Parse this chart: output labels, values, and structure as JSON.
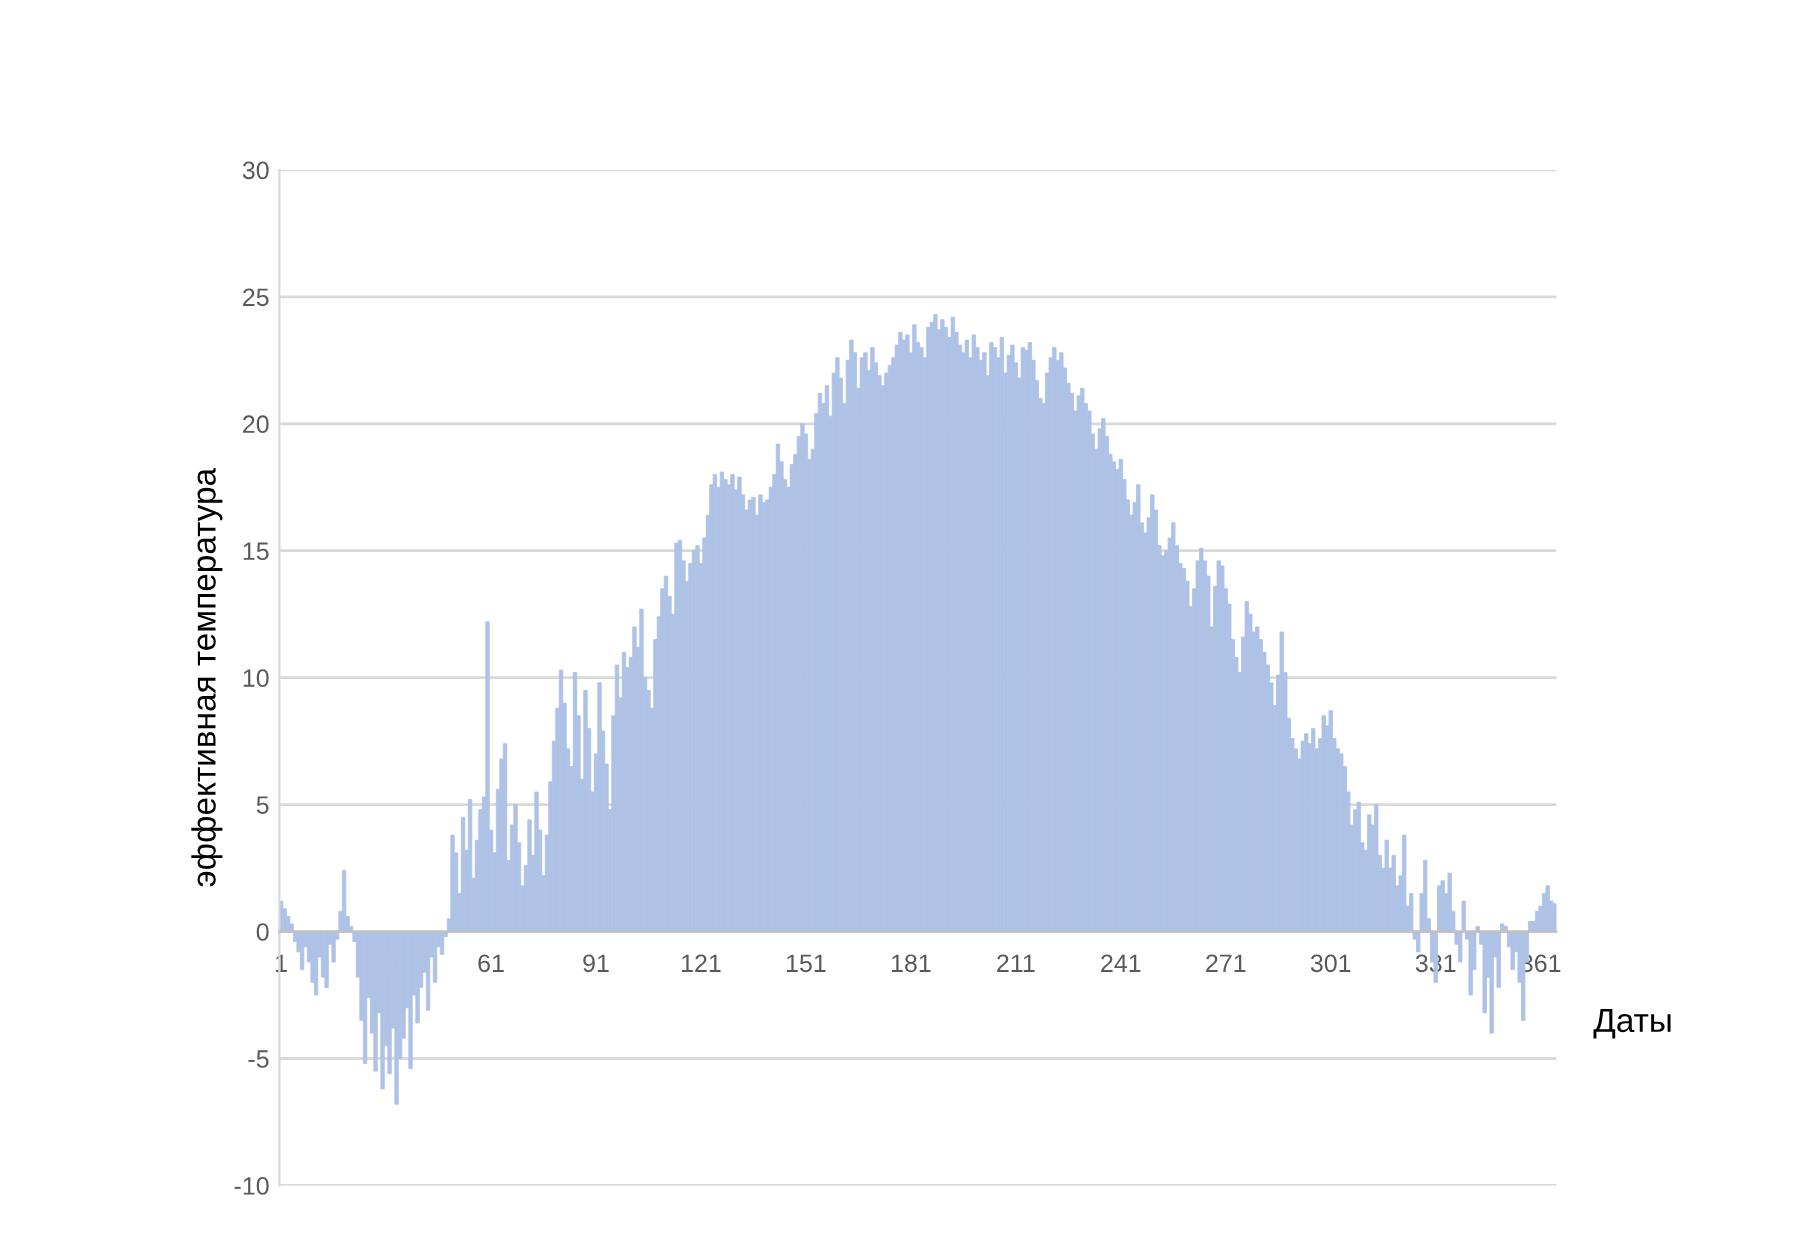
{
  "chart_data": {
    "type": "bar",
    "xlabel": "Даты",
    "ylabel": "эффективная температура",
    "x": [
      1,
      2,
      3,
      4,
      5,
      6,
      7,
      8,
      9,
      10,
      11,
      12,
      13,
      14,
      15,
      16,
      17,
      18,
      19,
      20,
      21,
      22,
      23,
      24,
      25,
      26,
      27,
      28,
      29,
      30,
      31,
      32,
      33,
      34,
      35,
      36,
      37,
      38,
      39,
      40,
      41,
      42,
      43,
      44,
      45,
      46,
      47,
      48,
      49,
      50,
      51,
      52,
      53,
      54,
      55,
      56,
      57,
      58,
      59,
      60,
      61,
      62,
      63,
      64,
      65,
      66,
      67,
      68,
      69,
      70,
      71,
      72,
      73,
      74,
      75,
      76,
      77,
      78,
      79,
      80,
      81,
      82,
      83,
      84,
      85,
      86,
      87,
      88,
      89,
      90,
      91,
      92,
      93,
      94,
      95,
      96,
      97,
      98,
      99,
      100,
      101,
      102,
      103,
      104,
      105,
      106,
      107,
      108,
      109,
      110,
      111,
      112,
      113,
      114,
      115,
      116,
      117,
      118,
      119,
      120,
      121,
      122,
      123,
      124,
      125,
      126,
      127,
      128,
      129,
      130,
      131,
      132,
      133,
      134,
      135,
      136,
      137,
      138,
      139,
      140,
      141,
      142,
      143,
      144,
      145,
      146,
      147,
      148,
      149,
      150,
      151,
      152,
      153,
      154,
      155,
      156,
      157,
      158,
      159,
      160,
      161,
      162,
      163,
      164,
      165,
      166,
      167,
      168,
      169,
      170,
      171,
      172,
      173,
      174,
      175,
      176,
      177,
      178,
      179,
      180,
      181,
      182,
      183,
      184,
      185,
      186,
      187,
      188,
      189,
      190,
      191,
      192,
      193,
      194,
      195,
      196,
      197,
      198,
      199,
      200,
      201,
      202,
      203,
      204,
      205,
      206,
      207,
      208,
      209,
      210,
      211,
      212,
      213,
      214,
      215,
      216,
      217,
      218,
      219,
      220,
      221,
      222,
      223,
      224,
      225,
      226,
      227,
      228,
      229,
      230,
      231,
      232,
      233,
      234,
      235,
      236,
      237,
      238,
      239,
      240,
      241,
      242,
      243,
      244,
      245,
      246,
      247,
      248,
      249,
      250,
      251,
      252,
      253,
      254,
      255,
      256,
      257,
      258,
      259,
      260,
      261,
      262,
      263,
      264,
      265,
      266,
      267,
      268,
      269,
      270,
      271,
      272,
      273,
      274,
      275,
      276,
      277,
      278,
      279,
      280,
      281,
      282,
      283,
      284,
      285,
      286,
      287,
      288,
      289,
      290,
      291,
      292,
      293,
      294,
      295,
      296,
      297,
      298,
      299,
      300,
      301,
      302,
      303,
      304,
      305,
      306,
      307,
      308,
      309,
      310,
      311,
      312,
      313,
      314,
      315,
      316,
      317,
      318,
      319,
      320,
      321,
      322,
      323,
      324,
      325,
      326,
      327,
      328,
      329,
      330,
      331,
      332,
      333,
      334,
      335,
      336,
      337,
      338,
      339,
      340,
      341,
      342,
      343,
      344,
      345,
      346,
      347,
      348,
      349,
      350,
      351,
      352,
      353,
      354,
      355,
      356,
      357,
      358,
      359,
      360,
      361,
      362,
      363,
      364,
      365
    ],
    "values": [
      1.2,
      0.9,
      0.6,
      0.3,
      -0.4,
      -0.8,
      -1.5,
      -0.6,
      -1.2,
      -2.0,
      -2.5,
      -1.0,
      -1.8,
      -2.2,
      -0.5,
      -1.2,
      -0.3,
      0.8,
      2.4,
      0.6,
      0.2,
      -0.4,
      -1.8,
      -3.5,
      -5.2,
      -2.6,
      -4.0,
      -5.5,
      -3.2,
      -6.2,
      -4.5,
      -5.6,
      -3.8,
      -6.8,
      -5.0,
      -4.2,
      -3.0,
      -5.4,
      -2.5,
      -3.6,
      -2.2,
      -1.6,
      -3.1,
      -1.0,
      -2.0,
      -0.6,
      -0.9,
      -0.2,
      0.5,
      3.8,
      3.1,
      1.5,
      4.5,
      3.2,
      5.2,
      2.1,
      3.6,
      4.8,
      5.3,
      12.2,
      4.0,
      3.1,
      5.6,
      6.8,
      7.4,
      2.8,
      4.2,
      5.0,
      3.5,
      1.8,
      2.6,
      4.4,
      3.0,
      5.5,
      4.0,
      2.2,
      3.8,
      5.9,
      7.5,
      8.8,
      10.3,
      9.0,
      7.2,
      6.5,
      10.2,
      8.5,
      6.0,
      9.5,
      8.0,
      5.5,
      7.0,
      9.8,
      7.9,
      6.6,
      4.8,
      8.5,
      10.5,
      9.2,
      11.0,
      10.4,
      10.8,
      12.0,
      11.2,
      12.7,
      10.0,
      9.5,
      8.8,
      11.5,
      12.4,
      13.5,
      14.0,
      13.2,
      12.5,
      15.3,
      15.4,
      14.6,
      13.8,
      14.5,
      15.0,
      15.2,
      14.5,
      15.5,
      16.4,
      17.6,
      18.0,
      17.5,
      18.1,
      17.8,
      17.6,
      18.0,
      17.4,
      17.9,
      17.2,
      16.6,
      17.0,
      17.1,
      16.4,
      17.2,
      16.9,
      17.0,
      17.5,
      18.0,
      19.2,
      18.5,
      17.8,
      17.5,
      18.4,
      18.8,
      19.5,
      20.0,
      19.6,
      18.6,
      19.0,
      20.4,
      21.2,
      20.8,
      21.5,
      20.3,
      22.0,
      22.6,
      21.8,
      20.8,
      22.5,
      23.3,
      22.8,
      21.4,
      22.6,
      22.8,
      22.1,
      23.0,
      22.4,
      21.9,
      21.5,
      22.0,
      22.3,
      22.6,
      23.1,
      23.6,
      23.3,
      23.5,
      22.8,
      23.9,
      23.2,
      23.0,
      22.6,
      23.8,
      24.0,
      24.3,
      23.7,
      24.1,
      23.8,
      23.4,
      24.2,
      23.6,
      23.1,
      22.8,
      23.3,
      22.6,
      23.5,
      23.0,
      22.5,
      22.8,
      21.9,
      23.2,
      23.0,
      22.6,
      23.4,
      22.0,
      22.7,
      23.1,
      22.4,
      21.8,
      23.0,
      22.9,
      23.2,
      22.5,
      21.7,
      21.0,
      20.8,
      22.0,
      22.6,
      23.0,
      22.5,
      22.8,
      22.2,
      21.6,
      21.2,
      20.5,
      21.1,
      21.4,
      20.8,
      20.5,
      19.6,
      19.0,
      19.8,
      20.2,
      19.5,
      18.8,
      18.5,
      18.2,
      18.6,
      17.8,
      17.0,
      16.4,
      16.9,
      17.6,
      16.1,
      15.7,
      16.3,
      17.2,
      16.6,
      15.2,
      14.8,
      15.0,
      15.5,
      16.1,
      15.2,
      14.5,
      14.3,
      13.8,
      12.8,
      13.5,
      14.6,
      15.1,
      14.6,
      14.0,
      12.0,
      13.6,
      14.6,
      14.4,
      13.5,
      12.9,
      11.5,
      10.8,
      10.2,
      11.6,
      13.0,
      12.5,
      11.8,
      12.0,
      11.5,
      11.0,
      10.5,
      9.8,
      8.9,
      10.1,
      11.8,
      10.2,
      8.4,
      7.6,
      7.2,
      6.8,
      7.5,
      7.8,
      7.4,
      8.0,
      7.2,
      7.6,
      8.5,
      8.1,
      8.7,
      7.6,
      7.2,
      7.0,
      6.5,
      5.5,
      4.2,
      4.8,
      5.1,
      3.5,
      3.2,
      4.6,
      4.2,
      5.0,
      3.0,
      2.5,
      3.6,
      2.5,
      3.0,
      1.8,
      2.2,
      3.8,
      1.0,
      1.5,
      -0.3,
      -0.8,
      1.5,
      2.8,
      0.5,
      -1.2,
      -2.0,
      1.8,
      2.0,
      1.5,
      2.3,
      0.8,
      -0.5,
      -1.2,
      1.2,
      -0.3,
      -2.5,
      -1.5,
      0.2,
      -0.5,
      -3.2,
      -1.8,
      -4.0,
      -1.0,
      -2.2,
      0.3,
      0.2,
      -0.6,
      -1.5,
      -0.8,
      -2.0,
      -3.5,
      -1.2,
      0.4,
      0.4,
      0.8,
      1.0,
      1.5,
      1.8,
      1.2,
      1.1
    ],
    "color": "#aec2e6",
    "xlim": [
      0.5,
      365.5
    ],
    "xticks": [
      1,
      31,
      61,
      91,
      121,
      151,
      181,
      211,
      241,
      271,
      301,
      331,
      361
    ],
    "ylim": [
      -10,
      30
    ],
    "yticks": [
      -10,
      -5,
      0,
      5,
      10,
      15,
      20,
      25,
      30
    ],
    "grid": "y"
  }
}
